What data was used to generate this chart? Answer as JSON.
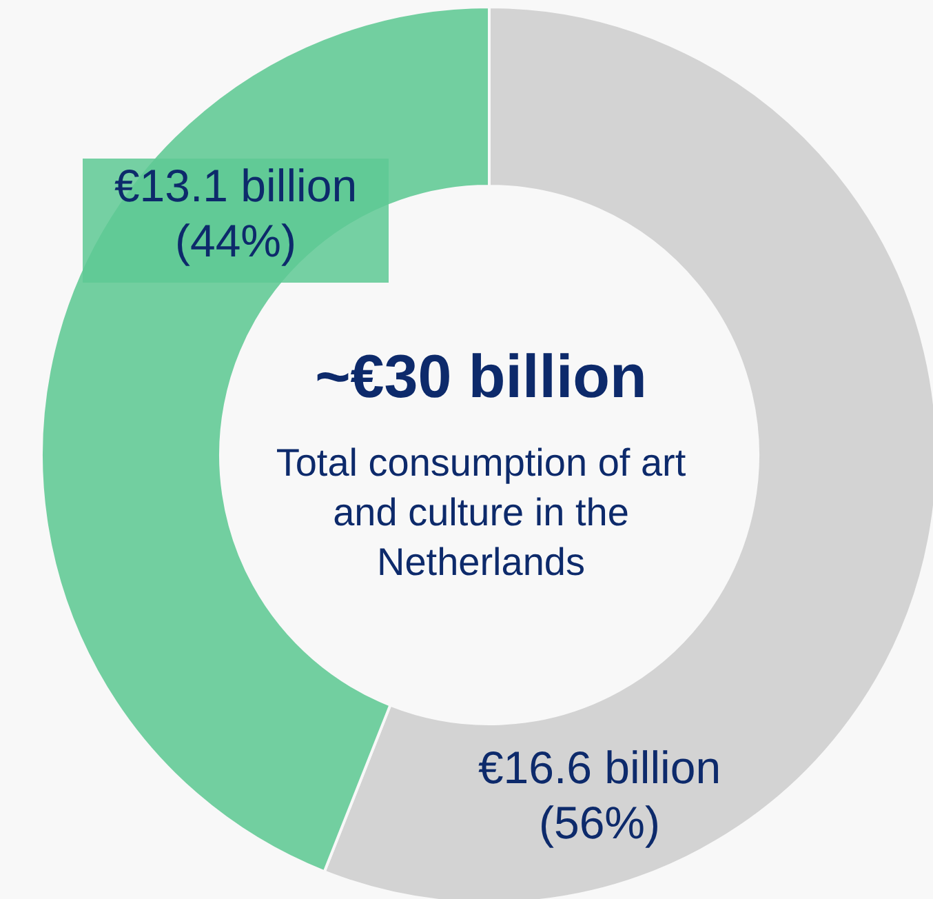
{
  "chart_data": {
    "type": "donut",
    "title": "~€30 billion",
    "subtitle": "Total consumption of art and culture in the Netherlands",
    "categories": [
      null,
      null
    ],
    "values": [
      56,
      44
    ],
    "colors": [
      "#d3d3d3",
      "#72cfa0"
    ],
    "value_labels": [
      "€16.6 billion\n(56%)",
      "€13.1 billion\n(44%)"
    ]
  }
}
